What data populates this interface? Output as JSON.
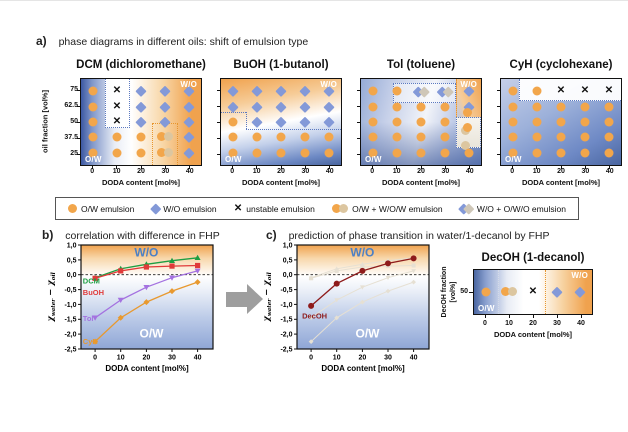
{
  "colors": {
    "ow_marker": "#F2A64B",
    "ow_marker_faded": "#DCC6A0",
    "wo_marker": "#8399D8",
    "wo_marker_faded": "#CFC7B8",
    "unstable_marker": "#111111",
    "dotted_blue": "#5B79C0",
    "dotted_orange": "#E8962E",
    "wo_text_blue": "#4D80C4",
    "arrow_gray": "#9E9E9E",
    "decoh_line": "#8E1B1B"
  },
  "glyphs": {
    "unstable": "✕"
  },
  "section_a": {
    "label": "a)",
    "title": "phase diagrams in different oils: shift of emulsion type",
    "ylabel": "oil fraction [vol%]",
    "xlabel": "DODA content [mol%]",
    "yticks": [
      "75",
      "62.5",
      "50",
      "37.5",
      "25"
    ],
    "xticks": [
      "0",
      "10",
      "20",
      "30",
      "40"
    ],
    "panels": [
      {
        "id": "dcm",
        "title": "DCM (dichloromethane)",
        "wo_label": "W/O",
        "ow_label": "O/W",
        "markers": [
          [
            "ow",
            "x",
            "wo",
            "wo",
            "wo"
          ],
          [
            "ow",
            "x",
            "wo",
            "wo",
            "wo"
          ],
          [
            "ow",
            "x",
            "wo",
            "wo",
            "wo"
          ],
          [
            "ow",
            "ow",
            "ow",
            "ow2",
            "wo"
          ],
          [
            "ow",
            "ow",
            "ow",
            "ow2",
            "wo"
          ]
        ]
      },
      {
        "id": "buoh",
        "title": "BuOH (1-butanol)",
        "wo_label": "W/O",
        "ow_label": "O/W",
        "markers": [
          [
            "wo",
            "wo",
            "wo",
            "wo",
            "wo"
          ],
          [
            "wo",
            "wo",
            "wo",
            "wo",
            "wo"
          ],
          [
            "ow",
            "wo",
            "wo",
            "wo",
            "wo"
          ],
          [
            "ow",
            "ow",
            "ow",
            "ow",
            "ow"
          ],
          [
            "ow",
            "ow",
            "ow",
            "ow",
            "ow"
          ]
        ]
      },
      {
        "id": "tol",
        "title": "Tol (toluene)",
        "wo_label": "W/O",
        "ow_label": "O/W",
        "markers": [
          [
            "ow",
            "ow",
            "wo2",
            "wo2",
            "wo"
          ],
          [
            "ow",
            "ow",
            "ow",
            "ow",
            "wo"
          ],
          [
            "ow",
            "ow",
            "ow",
            "ow",
            "ow2"
          ],
          [
            "ow",
            "ow",
            "ow",
            "ow",
            "ow2"
          ],
          [
            "ow",
            "ow",
            "ow",
            "ow",
            "ow"
          ]
        ]
      },
      {
        "id": "cyh",
        "title": "CyH (cyclohexane)",
        "wo_label": "",
        "ow_label": "O/W",
        "markers": [
          [
            "ow",
            "ow",
            "x",
            "x",
            "x"
          ],
          [
            "ow",
            "ow",
            "ow",
            "ow",
            "ow"
          ],
          [
            "ow",
            "ow",
            "ow",
            "ow",
            "ow"
          ],
          [
            "ow",
            "ow",
            "ow",
            "ow",
            "ow"
          ],
          [
            "ow",
            "ow",
            "ow",
            "ow",
            "ow"
          ]
        ]
      }
    ]
  },
  "legend": {
    "items": [
      {
        "marker": "ow",
        "label": "O/W emulsion"
      },
      {
        "marker": "wo",
        "label": "W/O emulsion"
      },
      {
        "marker": "x",
        "label": "unstable emulsion"
      },
      {
        "marker": "ow2",
        "label": "O/W + W/O/W emulsion"
      },
      {
        "marker": "wo2",
        "label": "W/O + O/W/O emulsion"
      }
    ]
  },
  "section_b": {
    "label": "b)",
    "title": "correlation with difference in FHP"
  },
  "section_c": {
    "label": "c)",
    "title": "prediction of phase transition in water/1-decanol by FHP"
  },
  "chart_data": [
    {
      "id": "b",
      "type": "line",
      "title": "correlation with difference in FHP",
      "x": [
        0,
        10,
        20,
        30,
        40
      ],
      "xlabel": "DODA content [mol%]",
      "xticks": [
        "0",
        "10",
        "20",
        "30",
        "40"
      ],
      "yticks": [
        "1,0",
        "0,5",
        "0,0",
        "-0,5",
        "-1,0",
        "-1,5",
        "-2,0",
        "-2,5"
      ],
      "ylim": [
        -2.5,
        1.0
      ],
      "xlim": [
        -5.5,
        46
      ],
      "zero_line": true,
      "grid": false,
      "legend_position": "inline-labels",
      "ylabel_parts": {
        "chi": "χ",
        "sub1": "water",
        "minus": "−",
        "sub2": "oil"
      },
      "region_labels": {
        "top": "W/O",
        "bottom": "O/W"
      },
      "series": [
        {
          "name": "DCM",
          "color": "#1E9E43",
          "marker": "triangle-up",
          "values": [
            -0.1,
            0.2,
            0.35,
            0.47,
            0.57
          ],
          "label_pos": [
            -4.8,
            -0.3
          ]
        },
        {
          "name": "BuOH",
          "color": "#E03A3A",
          "marker": "square",
          "values": [
            -0.12,
            0.13,
            0.26,
            0.29,
            0.31
          ],
          "label_pos": [
            -4.8,
            -0.68
          ]
        },
        {
          "name": "Tol",
          "color": "#A472E0",
          "marker": "triangle-down",
          "values": [
            -1.45,
            -0.85,
            -0.42,
            -0.1,
            0.13
          ],
          "label_pos": [
            -4.8,
            -1.55
          ]
        },
        {
          "name": "CyH",
          "color": "#E8992F",
          "marker": "diamond",
          "values": [
            -2.25,
            -1.45,
            -0.92,
            -0.55,
            -0.25
          ],
          "label_pos": [
            -4.8,
            -2.33
          ]
        }
      ]
    },
    {
      "id": "c",
      "type": "line",
      "title": "prediction of phase transition in water/1-decanol by FHP",
      "x": [
        0,
        10,
        20,
        30,
        40
      ],
      "xlabel": "DODA content [mol%]",
      "xticks": [
        "0",
        "10",
        "20",
        "30",
        "40"
      ],
      "yticks": [
        "1,0",
        "0,5",
        "0,0",
        "-0,5",
        "-1,0",
        "-1,5",
        "-2,0",
        "-2,5"
      ],
      "ylim": [
        -2.5,
        1.0
      ],
      "xlim": [
        -5.5,
        46
      ],
      "zero_line": true,
      "grid": false,
      "legend_position": "inline-labels",
      "ylabel_parts": {
        "chi": "χ",
        "sub1": "water",
        "minus": "−",
        "sub2": "oil"
      },
      "region_labels": {
        "top": "W/O",
        "bottom": "O/W"
      },
      "series": [
        {
          "name": "DCM (reference)",
          "color": "#E6E0D3",
          "marker": "triangle-up",
          "values": [
            -0.1,
            0.2,
            0.35,
            0.47,
            0.57
          ],
          "ghost": true
        },
        {
          "name": "BuOH (reference)",
          "color": "#E6E0D3",
          "marker": "square",
          "values": [
            -0.12,
            0.13,
            0.26,
            0.29,
            0.31
          ],
          "ghost": true
        },
        {
          "name": "Tol (reference)",
          "color": "#E6E0D3",
          "marker": "triangle-down",
          "values": [
            -1.45,
            -0.85,
            -0.42,
            -0.1,
            0.13
          ],
          "ghost": true
        },
        {
          "name": "CyH (reference)",
          "color": "#E6E0D3",
          "marker": "diamond",
          "values": [
            -2.25,
            -1.45,
            -0.92,
            -0.55,
            -0.25
          ],
          "ghost": true
        },
        {
          "name": "DecOH",
          "color": "#8E1B1B",
          "marker": "circle",
          "values": [
            -1.05,
            -0.3,
            0.13,
            0.38,
            0.55
          ],
          "label_pos": [
            -3.5,
            -1.48
          ]
        }
      ]
    },
    {
      "id": "decoh",
      "type": "phase_row",
      "title": "DecOH (1-decanol)",
      "ylabel_lines": [
        "DecOH fraction",
        "[vol%]"
      ],
      "ytick": "50",
      "xticks": [
        "0",
        "10",
        "20",
        "30",
        "40"
      ],
      "xlabel": "DODA content [mol%]",
      "markers": [
        "ow",
        "ow2",
        "x",
        "wo",
        "wo"
      ],
      "region_labels": {
        "top": "W/O",
        "bottom": "O/W"
      }
    }
  ]
}
